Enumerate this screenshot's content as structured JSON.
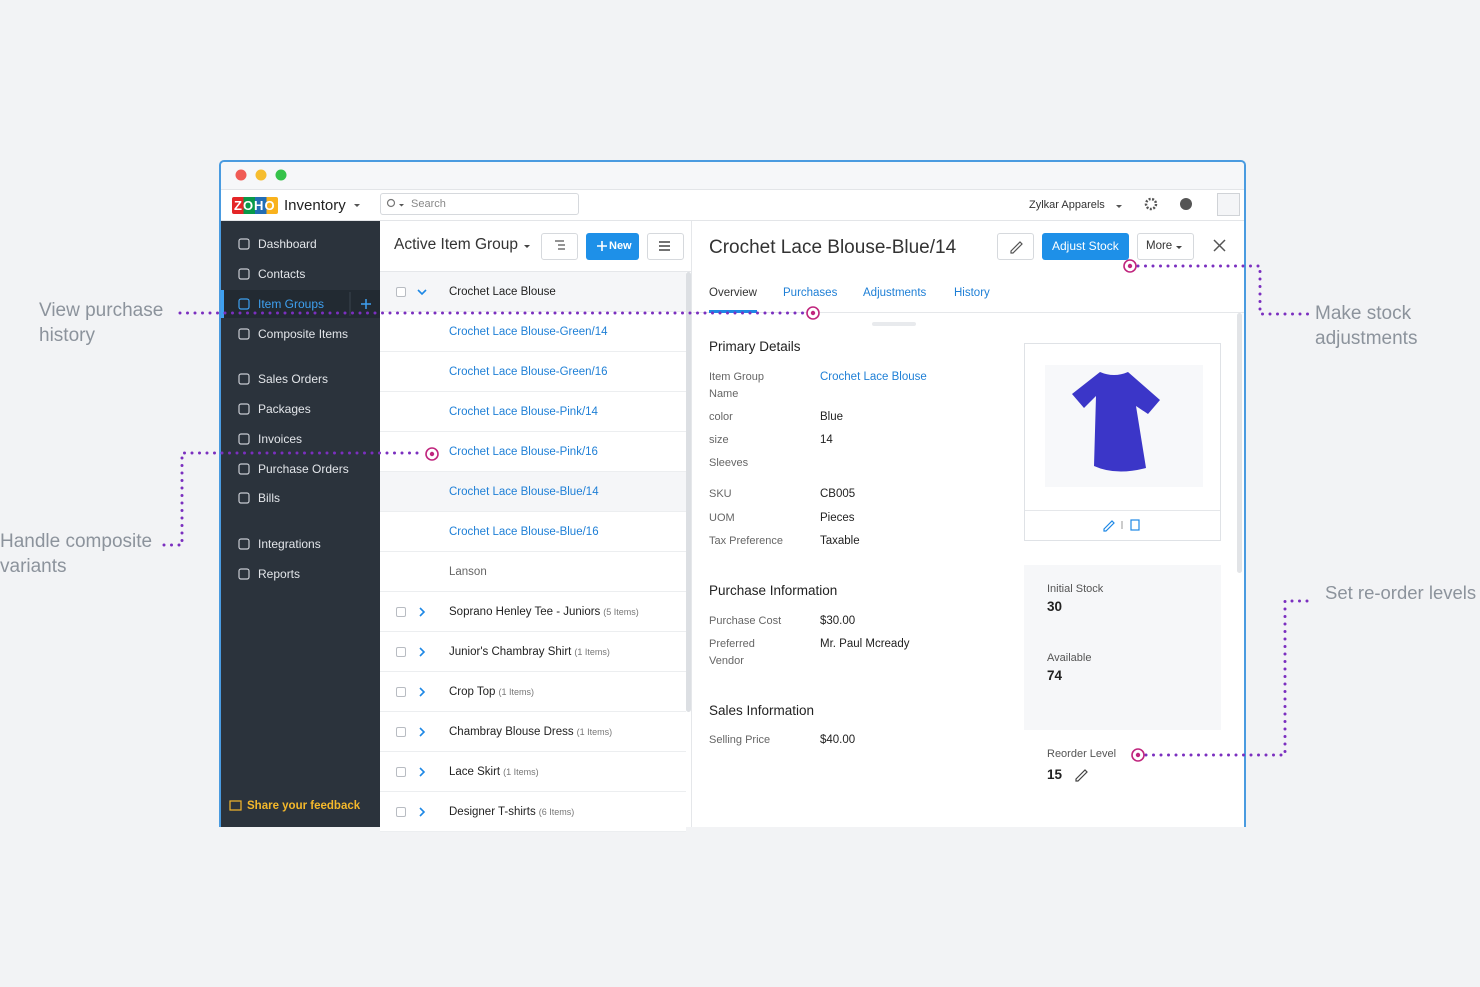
{
  "annotations": {
    "purchase_history": "View purchase\nhistory",
    "composite_variants": "Handle composite\nvariants",
    "stock_adjustments": "Make stock\nadjustments",
    "reorder_levels": "Set re-order levels"
  },
  "topbar": {
    "logo": "ZOHO",
    "app": "Inventory",
    "search": "Search",
    "org": "Zylkar Apparels"
  },
  "sidebar": {
    "items": [
      "Dashboard",
      "Contacts",
      "Item Groups",
      "Composite Items",
      "Sales Orders",
      "Packages",
      "Invoices",
      "Purchase Orders",
      "Bills",
      "Integrations",
      "Reports"
    ],
    "feedback": "Share your feedback"
  },
  "list": {
    "title": "Active Item Group",
    "new": "New",
    "expanded": {
      "name": "Crochet Lace Blouse",
      "variants": [
        "Crochet Lace Blouse-Green/14",
        "Crochet Lace Blouse-Green/16",
        "Crochet Lace Blouse-Pink/14",
        "Crochet Lace Blouse-Pink/16",
        "Crochet Lace Blouse-Blue/14",
        "Crochet Lace Blouse-Blue/16"
      ],
      "other": "Lanson"
    },
    "groups": [
      {
        "name": "Soprano Henley Tee - Juniors",
        "count": "(5 Items)"
      },
      {
        "name": "Junior's Chambray Shirt",
        "count": "(1 Items)"
      },
      {
        "name": "Crop Top",
        "count": "(1 Items)"
      },
      {
        "name": "Chambray Blouse Dress",
        "count": "(1 Items)"
      },
      {
        "name": "Lace Skirt",
        "count": "(1 Items)"
      },
      {
        "name": "Designer T-shirts",
        "count": "(6 Items)"
      }
    ]
  },
  "detail": {
    "title": "Crochet Lace Blouse-Blue/14",
    "adjust": "Adjust Stock",
    "more": "More",
    "tabs": [
      "Overview",
      "Purchases",
      "Adjustments",
      "History"
    ],
    "sections": [
      {
        "heading": "Primary Details",
        "fields": [
          {
            "label": "Item Group\nName",
            "value": "Crochet Lace Blouse"
          },
          {
            "label": "color",
            "value": "Blue"
          },
          {
            "label": "size",
            "value": "14"
          },
          {
            "label": "Sleeves"
          },
          {
            "label": "SKU",
            "value": "CB005"
          },
          {
            "label": "UOM",
            "value": "Pieces"
          },
          {
            "label": "Tax Preference",
            "value": "Taxable"
          }
        ]
      },
      {
        "heading": "Purchase Information",
        "fields": [
          {
            "label": "Purchase Cost",
            "value": "$30.00"
          },
          {
            "label": "Preferred\nVendor",
            "value": "Mr. Paul Mcready"
          }
        ]
      },
      {
        "heading": "Sales Information",
        "fields": [
          {
            "label": "Selling Price",
            "value": "$40.00"
          }
        ]
      }
    ],
    "stock": [
      {
        "label": "Initial Stock",
        "value": 30
      },
      {
        "label": "Available",
        "value": 74
      },
      {
        "label": "Reorder Level",
        "value": 15
      }
    ]
  }
}
